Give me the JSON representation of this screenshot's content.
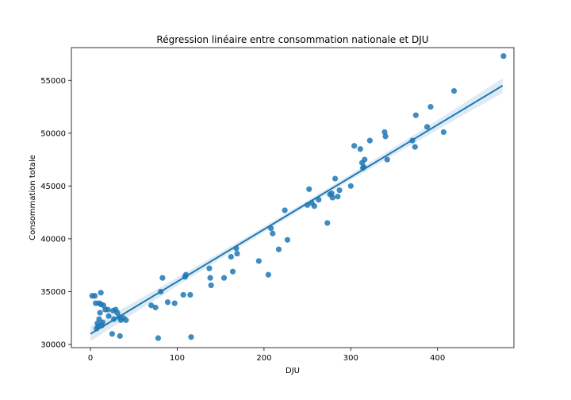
{
  "chart_data": {
    "type": "scatter",
    "title": "Régression linéaire entre consommation nationale et DJU",
    "xlabel": "DJU",
    "ylabel": "Consommation totale",
    "xlim": [
      -22,
      488
    ],
    "ylim": [
      29700,
      58100
    ],
    "xticks": [
      0,
      100,
      200,
      300,
      400
    ],
    "yticks": [
      30000,
      35000,
      40000,
      45000,
      50000,
      55000
    ],
    "grid": false,
    "colors": {
      "points": "#1f77b4",
      "line": "#1f77b4",
      "band": "#1f77b4"
    },
    "regression": {
      "x": [
        0,
        475
      ],
      "y": [
        31000,
        54500
      ],
      "ci_half_width_ends": 700,
      "ci_half_width_center": 250
    },
    "points": [
      [
        2,
        34600
      ],
      [
        5,
        34600
      ],
      [
        6,
        33900
      ],
      [
        7,
        31500
      ],
      [
        8,
        32000
      ],
      [
        9,
        31700
      ],
      [
        10,
        33900
      ],
      [
        10,
        32400
      ],
      [
        11,
        33000
      ],
      [
        12,
        34900
      ],
      [
        12,
        33800
      ],
      [
        13,
        31800
      ],
      [
        14,
        32100
      ],
      [
        15,
        33700
      ],
      [
        17,
        33300
      ],
      [
        20,
        33300
      ],
      [
        21,
        32700
      ],
      [
        25,
        31000
      ],
      [
        26,
        33200
      ],
      [
        27,
        32400
      ],
      [
        29,
        33300
      ],
      [
        31,
        33000
      ],
      [
        33,
        32600
      ],
      [
        34,
        30800
      ],
      [
        35,
        32300
      ],
      [
        38,
        32500
      ],
      [
        41,
        32300
      ],
      [
        70,
        33700
      ],
      [
        75,
        33500
      ],
      [
        78,
        30600
      ],
      [
        81,
        35000
      ],
      [
        83,
        36300
      ],
      [
        89,
        34000
      ],
      [
        97,
        33900
      ],
      [
        107,
        34700
      ],
      [
        109,
        36400
      ],
      [
        110,
        36600
      ],
      [
        115,
        34700
      ],
      [
        116,
        30700
      ],
      [
        137,
        37200
      ],
      [
        138,
        36300
      ],
      [
        139,
        35600
      ],
      [
        154,
        36300
      ],
      [
        162,
        38300
      ],
      [
        164,
        36900
      ],
      [
        168,
        39100
      ],
      [
        169,
        38600
      ],
      [
        194,
        37900
      ],
      [
        205,
        36600
      ],
      [
        208,
        41000
      ],
      [
        210,
        40500
      ],
      [
        217,
        39000
      ],
      [
        224,
        42700
      ],
      [
        227,
        39900
      ],
      [
        250,
        43200
      ],
      [
        252,
        44700
      ],
      [
        255,
        43400
      ],
      [
        258,
        43100
      ],
      [
        263,
        43700
      ],
      [
        273,
        41500
      ],
      [
        276,
        44200
      ],
      [
        278,
        44300
      ],
      [
        279,
        43900
      ],
      [
        282,
        45700
      ],
      [
        285,
        44000
      ],
      [
        287,
        44600
      ],
      [
        300,
        45000
      ],
      [
        304,
        48800
      ],
      [
        311,
        48500
      ],
      [
        313,
        47200
      ],
      [
        314,
        46700
      ],
      [
        315,
        46800
      ],
      [
        316,
        47500
      ],
      [
        322,
        49300
      ],
      [
        339,
        50100
      ],
      [
        340,
        49700
      ],
      [
        342,
        47500
      ],
      [
        371,
        49300
      ],
      [
        375,
        51700
      ],
      [
        374,
        48700
      ],
      [
        388,
        50600
      ],
      [
        392,
        52500
      ],
      [
        407,
        50100
      ],
      [
        419,
        54000
      ],
      [
        476,
        57300
      ]
    ]
  }
}
